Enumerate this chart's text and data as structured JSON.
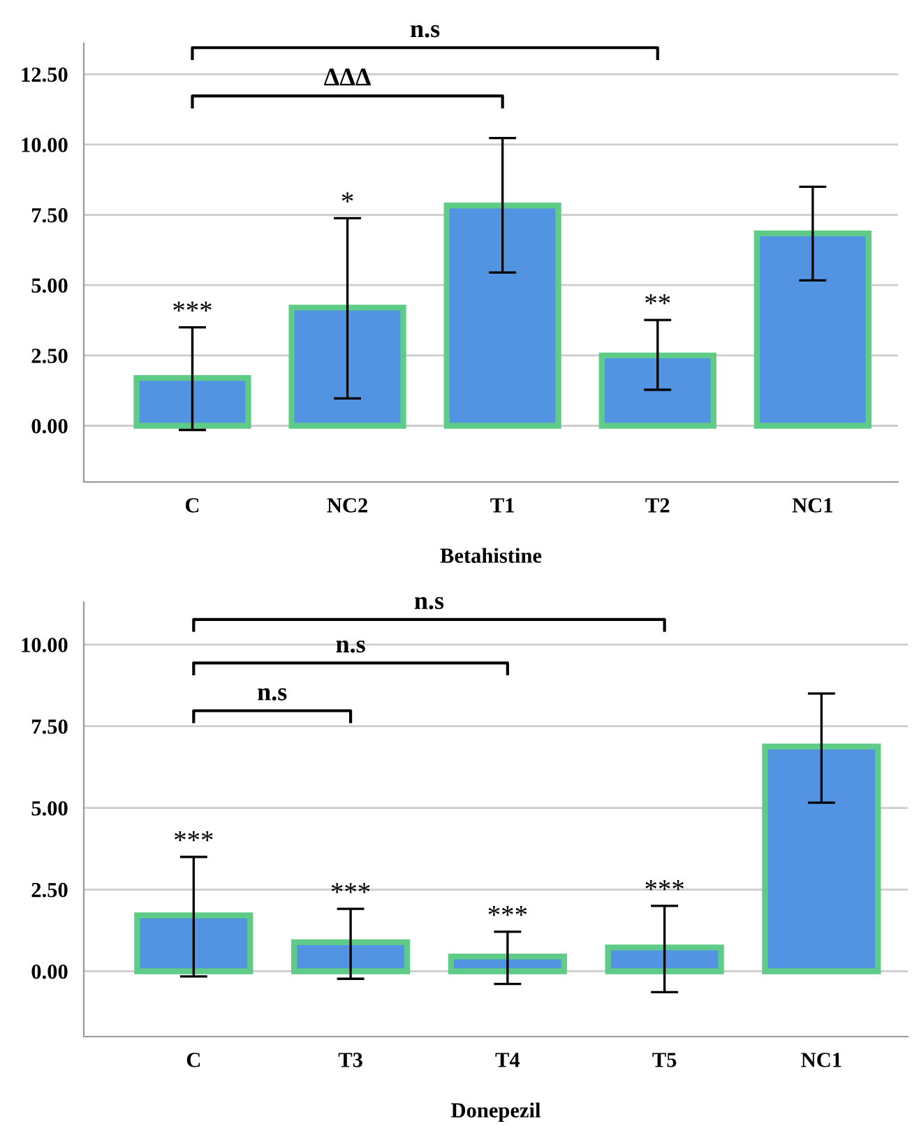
{
  "chart_data": [
    {
      "type": "bar",
      "xlabel": "Betahistine",
      "categories": [
        "C",
        "NC2",
        "T1",
        "T2",
        "NC1"
      ],
      "values": [
        1.7,
        4.2,
        7.83,
        2.5,
        6.84
      ],
      "color": "#5294e2",
      "errors": [
        [
          -0.15,
          3.5
        ],
        [
          0.97,
          7.38
        ],
        [
          5.45,
          10.23
        ],
        [
          1.28,
          3.76
        ],
        [
          5.17,
          8.5
        ]
      ],
      "ylim": [
        -2,
        13.6
      ],
      "yticks": [
        {
          "value": 0,
          "label": "0.00"
        },
        {
          "value": 2.5,
          "label": "2.50"
        },
        {
          "value": 5,
          "label": "5.00"
        },
        {
          "value": 7.5,
          "label": "7.50"
        },
        {
          "value": 10,
          "label": "10.00"
        },
        {
          "value": 12.5,
          "label": "12.50"
        }
      ],
      "grid": "y",
      "legend": false,
      "annotations": [
        {
          "text": "***",
          "x": "C",
          "y": 3.5
        },
        {
          "text": "*",
          "x": "NC2",
          "y": 7.38
        },
        {
          "text": "**",
          "x": "T2",
          "y": 3.76
        },
        "n.s",
        "ΔΔΔ"
      ]
    },
    {
      "type": "bar",
      "xlabel": "Donepezil",
      "categories": [
        "C",
        "T3",
        "T4",
        "T5",
        "NC1"
      ],
      "values": [
        1.71,
        0.89,
        0.45,
        0.73,
        6.88
      ],
      "color": "#5294e2",
      "errors": [
        [
          -0.16,
          3.5
        ],
        [
          -0.23,
          1.91
        ],
        [
          -0.39,
          1.21
        ],
        [
          -0.64,
          2.0
        ],
        [
          5.16,
          8.5
        ]
      ],
      "ylim": [
        -2,
        11.3
      ],
      "yticks": [
        {
          "value": 0,
          "label": "0.00"
        },
        {
          "value": 2.5,
          "label": "2.50"
        },
        {
          "value": 5,
          "label": "5.00"
        },
        {
          "value": 7.5,
          "label": "7.50"
        },
        {
          "value": 10,
          "label": "10.00"
        }
      ],
      "grid": "y",
      "legend": false,
      "annotations": [
        {
          "text": "***",
          "x": "C",
          "y": 3.5
        },
        {
          "text": "***",
          "x": "T3",
          "y": 1.91
        },
        {
          "text": "***",
          "x": "T4",
          "y": 1.21
        },
        {
          "text": "***",
          "x": "T5",
          "y": 2.0
        },
        "n.s",
        "n.s",
        "n.s"
      ]
    }
  ]
}
